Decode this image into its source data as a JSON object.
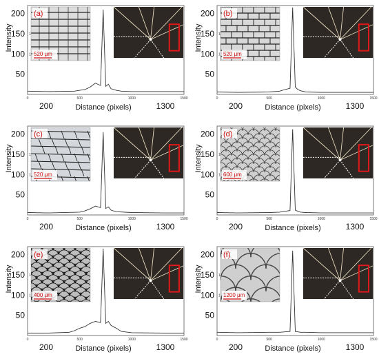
{
  "chart_data": [
    {
      "type": "line",
      "panel": "(a)",
      "xlabel": "Distance (pixels)",
      "ylabel": "Intensity",
      "xlim": [
        0,
        1500
      ],
      "ylim": [
        0,
        220
      ],
      "xticks_major": [
        "200",
        "1300"
      ],
      "xticks_minor": [
        "0",
        "500",
        "1000",
        "1500"
      ],
      "yticks_major": [
        "50",
        "100",
        "150",
        "200"
      ],
      "yticks_minor": [
        "100",
        "150"
      ],
      "inset_pattern": "grid",
      "scale_bar": "520 μm",
      "series": [
        {
          "x": [
            0,
            200,
            450,
            500,
            550,
            600,
            650,
            700,
            725,
            750,
            775,
            800,
            850,
            900,
            1000,
            1300,
            1500
          ],
          "y": [
            8,
            7,
            8,
            10,
            12,
            18,
            28,
            22,
            210,
            20,
            25,
            14,
            10,
            8,
            7,
            7,
            7
          ]
        }
      ]
    },
    {
      "type": "line",
      "panel": "(b)",
      "xlabel": "Distance (pixels)",
      "ylabel": "Intensity",
      "xlim": [
        0,
        1500
      ],
      "ylim": [
        0,
        220
      ],
      "xticks_major": [
        "200",
        "1300"
      ],
      "xticks_minor": [
        "0",
        "500",
        "1000",
        "1500"
      ],
      "yticks_major": [
        "50",
        "100",
        "150",
        "200"
      ],
      "yticks_minor": [
        "100",
        "150"
      ],
      "inset_pattern": "brick",
      "scale_bar": "520 μm",
      "series": [
        {
          "x": [
            0,
            200,
            500,
            600,
            650,
            700,
            725,
            750,
            775,
            800,
            850,
            1000,
            1300,
            1500
          ],
          "y": [
            6,
            5,
            6,
            8,
            12,
            15,
            215,
            18,
            12,
            9,
            6,
            5,
            5,
            5
          ]
        }
      ]
    },
    {
      "type": "line",
      "panel": "(c)",
      "xlabel": "Distance (pixels)",
      "ylabel": "Intensity",
      "xlim": [
        0,
        1500
      ],
      "ylim": [
        0,
        220
      ],
      "xticks_major": [
        "200",
        "1300"
      ],
      "xticks_minor": [
        "0",
        "500",
        "1000",
        "1500"
      ],
      "yticks_major": [
        "50",
        "100",
        "150",
        "200"
      ],
      "yticks_minor": [
        "100",
        "150"
      ],
      "inset_pattern": "irregular",
      "scale_bar": "520 μm",
      "series": [
        {
          "x": [
            0,
            200,
            500,
            550,
            600,
            650,
            700,
            725,
            750,
            775,
            800,
            850,
            1000,
            1300,
            1500
          ],
          "y": [
            6,
            5,
            7,
            10,
            15,
            22,
            18,
            205,
            16,
            20,
            12,
            8,
            6,
            5,
            5
          ]
        }
      ]
    },
    {
      "type": "line",
      "panel": "(d)",
      "xlabel": "Distance (pixels)",
      "ylabel": "Intensity",
      "xlim": [
        0,
        1500
      ],
      "ylim": [
        0,
        220
      ],
      "xticks_major": [
        "200",
        "1300"
      ],
      "xticks_minor": [
        "0",
        "500",
        "1000",
        "1500"
      ],
      "yticks_major": [
        "50",
        "100",
        "150",
        "200"
      ],
      "yticks_minor": [
        "100",
        "150"
      ],
      "inset_pattern": "scales",
      "scale_bar": "600 μm",
      "series": [
        {
          "x": [
            0,
            200,
            500,
            600,
            650,
            700,
            725,
            750,
            775,
            800,
            850,
            1000,
            1300,
            1500
          ],
          "y": [
            6,
            5,
            6,
            7,
            9,
            11,
            212,
            12,
            9,
            7,
            6,
            5,
            5,
            5
          ]
        }
      ]
    },
    {
      "type": "line",
      "panel": "(e)",
      "xlabel": "Distance (pixels)",
      "ylabel": "Intensity",
      "xlim": [
        0,
        1500
      ],
      "ylim": [
        0,
        220
      ],
      "xticks_major": [
        "200",
        "1300"
      ],
      "xticks_minor": [
        "0",
        "500",
        "1000",
        "1500"
      ],
      "yticks_major": [
        "50",
        "100",
        "150",
        "200"
      ],
      "yticks_minor": [
        "100",
        "150"
      ],
      "inset_pattern": "dark-scales",
      "scale_bar": "400 μm",
      "series": [
        {
          "x": [
            0,
            200,
            400,
            450,
            500,
            550,
            600,
            650,
            700,
            725,
            750,
            775,
            800,
            850,
            900,
            1000,
            1300,
            1500
          ],
          "y": [
            6,
            6,
            8,
            12,
            18,
            22,
            30,
            35,
            32,
            215,
            30,
            35,
            25,
            18,
            10,
            7,
            6,
            6
          ]
        }
      ]
    },
    {
      "type": "line",
      "panel": "(f)",
      "xlabel": "Distance (pixels)",
      "ylabel": "Intensity",
      "xlim": [
        0,
        1500
      ],
      "ylim": [
        0,
        220
      ],
      "xticks_major": [
        "200",
        "1300"
      ],
      "xticks_minor": [
        "0",
        "500",
        "1000",
        "1500"
      ],
      "yticks_major": [
        "50",
        "100",
        "150",
        "200"
      ],
      "yticks_minor": [
        "100",
        "150"
      ],
      "inset_pattern": "large-scales",
      "scale_bar": "1200 μm",
      "series": [
        {
          "x": [
            0,
            200,
            500,
            600,
            650,
            700,
            725,
            750,
            775,
            800,
            850,
            1000,
            1300,
            1500
          ],
          "y": [
            8,
            7,
            8,
            8,
            9,
            10,
            210,
            10,
            9,
            8,
            8,
            7,
            7,
            7
          ]
        }
      ]
    }
  ]
}
